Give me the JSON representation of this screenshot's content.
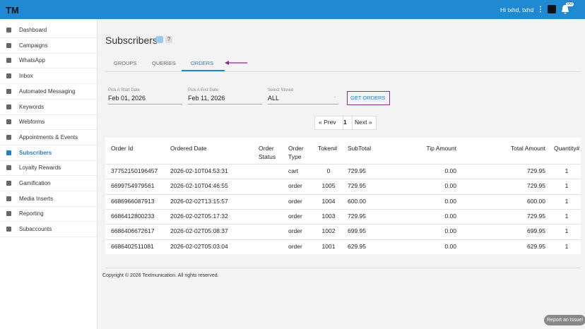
{
  "header": {
    "logo": "TM",
    "user": "Hi txhd, txhd",
    "badge": "00"
  },
  "sidebar": {
    "items": [
      "Dashboard",
      "Campaigns",
      "WhatsApp",
      "Inbox",
      "Automated Messaging",
      "Keywords",
      "Webforms",
      "Appointments & Events",
      "Subscribers",
      "Loyalty Rewards",
      "Gamification",
      "Media Inserts",
      "Reporting",
      "Subaccounts"
    ]
  },
  "page": {
    "title": "Subscribers",
    "help": "?"
  },
  "tabs": [
    "GROUPS",
    "QUERIES",
    "ORDERS"
  ],
  "filters": [
    {
      "label": "Pick A Start Date",
      "value": "Feb 01, 2026"
    },
    {
      "label": "Pick A End Date",
      "value": "Feb 11, 2026"
    },
    {
      "label": "Select Stored",
      "value": "ALL"
    }
  ],
  "button": "GET ORDERS",
  "pagination": [
    "« Prev",
    "1",
    "Next »"
  ],
  "table": {
    "header": [
      "Order Id",
      "Ordered Date",
      "Order Status",
      "Order Type",
      "Token#",
      "SubTotal",
      "Tip Amount",
      "Total Amount",
      "Quantity#"
    ],
    "rows": [
      [
        "37752150196457",
        "2026-02-10T04:53:31",
        "",
        "cart",
        "0",
        "729.95",
        "0.00",
        "729.95",
        "1"
      ],
      [
        "6699754979561",
        "2026-02-10T04:46:55",
        "",
        "order",
        "1005",
        "729.95",
        "0.00",
        "729.95",
        "1"
      ],
      [
        "6686966087913",
        "2026-02-02T13:15:57",
        "",
        "order",
        "1004",
        "600.00",
        "0.00",
        "600.00",
        "1"
      ],
      [
        "6686412800233",
        "2026-02-02T05:17:32",
        "",
        "order",
        "1003",
        "729.95",
        "0.00",
        "729.95",
        "1"
      ],
      [
        "6686406672617",
        "2026-02-02T05:08:37",
        "",
        "order",
        "1002",
        "699.95",
        "0.00",
        "699.95",
        "1"
      ],
      [
        "6686402511081",
        "2026-02-02T05:03:04",
        "",
        "order",
        "1001",
        "629.95",
        "0.00",
        "629.95",
        "1"
      ]
    ]
  },
  "footer": "Copyright © 2026 Textmunication. All rights reserved.",
  "report": "Report an Issue!"
}
